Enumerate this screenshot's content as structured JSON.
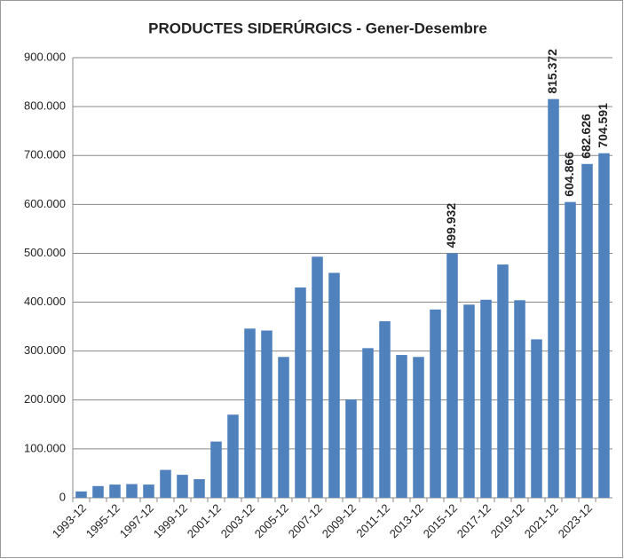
{
  "chart_data": {
    "type": "bar",
    "title": "PRODUCTES SIDERÚRGICS - Gener-Desembre",
    "categories": [
      "1993-12",
      null,
      "1995-12",
      null,
      "1997-12",
      null,
      "1999-12",
      null,
      "2001-12",
      null,
      "2003-12",
      null,
      "2005-12",
      null,
      "2007-12",
      null,
      "2009-12",
      null,
      "2011-12",
      null,
      "2013-12",
      null,
      "2015-12",
      null,
      "2017-12",
      null,
      "2019-12",
      null,
      "2021-12",
      null,
      "2023-12",
      null
    ],
    "values": [
      13000,
      24000,
      27000,
      28000,
      27000,
      57000,
      47000,
      38000,
      115000,
      170000,
      346000,
      342000,
      288000,
      430000,
      493000,
      460000,
      201000,
      306000,
      361000,
      292000,
      288000,
      385000,
      499932,
      395000,
      405000,
      477000,
      404000,
      324000,
      815372,
      604866,
      682626,
      704591
    ],
    "value_labels": [
      null,
      null,
      null,
      null,
      null,
      null,
      null,
      null,
      null,
      null,
      null,
      null,
      null,
      null,
      null,
      null,
      null,
      null,
      null,
      null,
      null,
      null,
      "499.932",
      null,
      null,
      null,
      null,
      null,
      "815.372",
      "604.866",
      "682.626",
      "704.591"
    ],
    "color": "#4f81bd",
    "ylim": [
      0,
      900000
    ],
    "yticks": [
      0,
      {
        "value": 100000,
        "label": "100.000"
      },
      {
        "value": 200000,
        "label": "200.000"
      },
      {
        "value": 300000,
        "label": "300.000"
      },
      {
        "value": 400000,
        "label": "400.000"
      },
      {
        "value": 500000,
        "label": "500.000"
      },
      {
        "value": 600000,
        "label": "600.000"
      },
      {
        "value": 700000,
        "label": "700.000"
      },
      {
        "value": 800000,
        "label": "800.000"
      },
      {
        "value": 900000,
        "label": "900.000"
      }
    ],
    "grid": true
  }
}
